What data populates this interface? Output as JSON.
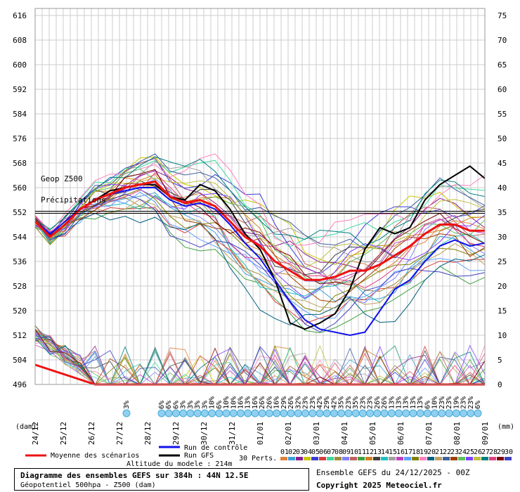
{
  "chart_data": {
    "type": "line",
    "left_axis": {
      "label": "(dam)",
      "ticks": [
        616,
        608,
        600,
        592,
        584,
        576,
        568,
        560,
        552,
        544,
        536,
        528,
        520,
        512,
        504,
        496
      ],
      "range": [
        496,
        616
      ]
    },
    "right_axis": {
      "label": "(mm)",
      "ticks": [
        75,
        70,
        65,
        60,
        55,
        50,
        45,
        40,
        35,
        30,
        25,
        20,
        15,
        10,
        5,
        0
      ],
      "range": [
        0,
        75
      ]
    },
    "x_dates": [
      "24/12",
      "25/12",
      "26/12",
      "27/12",
      "28/12",
      "29/12",
      "30/12",
      "31/12",
      "01/01",
      "02/01",
      "03/01",
      "04/01",
      "05/01",
      "06/01",
      "07/01",
      "08/01",
      "09/01"
    ],
    "annotations": {
      "geop": "Geop Z500",
      "precip": "Précipitations"
    },
    "reference_line_dam": 552,
    "mean_z500": [
      549,
      544,
      548,
      553,
      556,
      558,
      560,
      561,
      562,
      557,
      555,
      556,
      554,
      549,
      544,
      541,
      536,
      533,
      530,
      530,
      531,
      533,
      533,
      535,
      538,
      541,
      545,
      548,
      548,
      546,
      546
    ],
    "control_z500": [
      549,
      545,
      549,
      553,
      556,
      558,
      559,
      560,
      560,
      556,
      554,
      555,
      553,
      548,
      542,
      537,
      530,
      523,
      517,
      514,
      513,
      512,
      513,
      520,
      527,
      530,
      536,
      541,
      543,
      541,
      542
    ],
    "gfs_z500": [
      549,
      544,
      548,
      553,
      556,
      559,
      560,
      561,
      561,
      557,
      556,
      561,
      559,
      553,
      545,
      540,
      530,
      516,
      514,
      516,
      519,
      527,
      540,
      547,
      545,
      547,
      556,
      561,
      564,
      567,
      563
    ],
    "mean_precip_mm": [
      4,
      3,
      2,
      1,
      0,
      0,
      0,
      0,
      0,
      0,
      0,
      0,
      0,
      0,
      0,
      0,
      0,
      0,
      0,
      0,
      0,
      0,
      0,
      0,
      0,
      0,
      0,
      0,
      0,
      0,
      0
    ],
    "precip_pct": [
      "3%",
      "6%",
      "6%",
      "6%",
      "3%",
      "3%",
      "3%",
      "3%",
      "10%",
      "6%",
      "10%",
      "10%",
      "16%",
      "13%",
      "16%",
      "26%",
      "26%",
      "16%",
      "29%",
      "26%",
      "32%",
      "23%",
      "23%",
      "42%",
      "29%",
      "42%",
      "35%",
      "23%",
      "35%",
      "23%",
      "23%",
      "26%",
      "26%",
      "13%",
      "13%",
      "13%",
      "13%",
      "13%",
      "6%",
      "10%",
      "23%",
      "23%",
      "19%",
      "23%",
      "23%",
      "6%"
    ],
    "legend": {
      "mean": "Moyenne des scénarios",
      "control": "Run de contrôle",
      "gfs": "Run GFS",
      "perts": "30 Perts.",
      "pert_numbers": [
        "01",
        "02",
        "03",
        "04",
        "05",
        "06",
        "07",
        "08",
        "09",
        "10",
        "11",
        "12",
        "13",
        "14",
        "15",
        "16",
        "17",
        "18",
        "19",
        "20",
        "21",
        "22",
        "23",
        "24",
        "25",
        "26",
        "27",
        "28",
        "29",
        "30"
      ],
      "pert_colors": [
        "#e0803c",
        "#3c9ed8",
        "#8a1e8a",
        "#c8c800",
        "#3c3cd8",
        "#d83c3c",
        "#3cd8a0",
        "#a08c3c",
        "#8080ff",
        "#c06060",
        "#40a040",
        "#d08020",
        "#404040",
        "#20c0c0",
        "#a0a0a0",
        "#c040c0",
        "#60a0ff",
        "#808000",
        "#ff80c0",
        "#006080",
        "#c0a060",
        "#4060a0",
        "#a04000",
        "#60c060",
        "#8040ff",
        "#c0c040",
        "#008080",
        "#e04080",
        "#800000",
        "#4040c0"
      ]
    },
    "colors": {
      "mean": "#ee1111",
      "control": "#1111ee",
      "gfs": "#000000",
      "grid": "#cccccc"
    }
  },
  "altitude": "Altitude du modele : 214m",
  "footer": {
    "title": "Diagramme des ensembles GEFS sur 384h : 44N 12.5E",
    "subtitle": "Géopotentiel 500hpa - Z500 (dam)",
    "run": "Ensemble GEFS du 24/12/2025 - 00Z",
    "copyright": "Copyright 2025 Meteociel.fr"
  }
}
